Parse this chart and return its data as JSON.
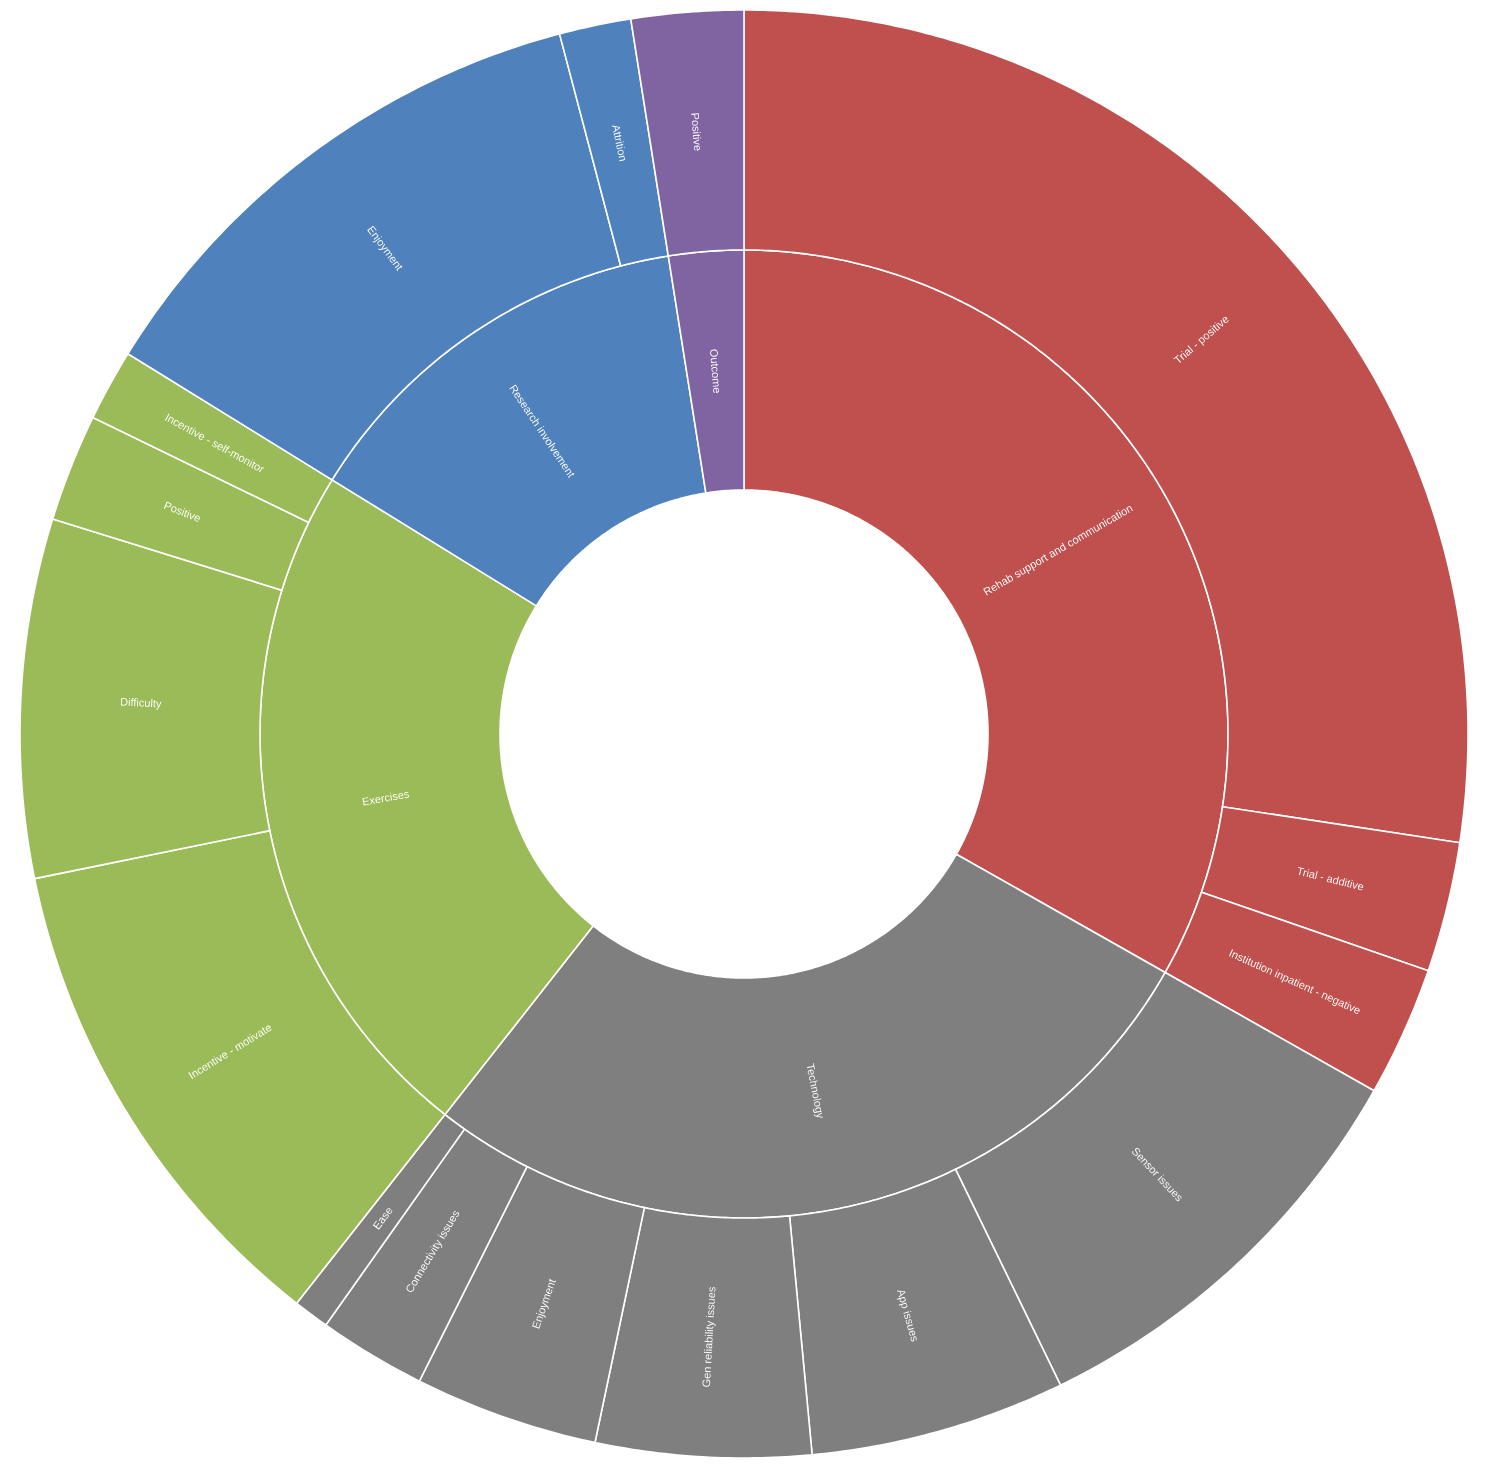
{
  "chart_data": [
    {
      "type": "donut",
      "categories": [
        "Rehab support and communication",
        "Technology",
        "Exercises",
        "Research involvement",
        "Outcome"
      ],
      "values": [
        33.2,
        27.4,
        23.2,
        13.7,
        2.5
      ],
      "colors": [
        "#c0504d",
        "#7f7f7f",
        "#9bbb59",
        "#4f81bd",
        "#8064a2"
      ]
    },
    {
      "type": "donut",
      "categories": [
        "Trial - positive",
        "Trial - additive",
        "Institution inpatient - negative",
        "Sensor issues",
        "App issues",
        "Gen reliability issues",
        "Enjoyment",
        "Connectivity issues",
        "Ease",
        "Incentive - motivate",
        "Difficulty",
        "Positive",
        "Incentive - self-monitor",
        "Enjoyment",
        "Attrition",
        "Positive"
      ],
      "values": [
        27.4,
        2.9,
        2.9,
        9.6,
        5.7,
        4.8,
        4.1,
        2.4,
        0.8,
        11.2,
        8.0,
        2.4,
        1.6,
        12.1,
        1.6,
        2.5
      ],
      "colors": [
        "#c0504d",
        "#c0504d",
        "#c0504d",
        "#7f7f7f",
        "#7f7f7f",
        "#7f7f7f",
        "#7f7f7f",
        "#7f7f7f",
        "#7f7f7f",
        "#9bbb59",
        "#9bbb59",
        "#9bbb59",
        "#9bbb59",
        "#4f81bd",
        "#4f81bd",
        "#8064a2"
      ]
    }
  ]
}
